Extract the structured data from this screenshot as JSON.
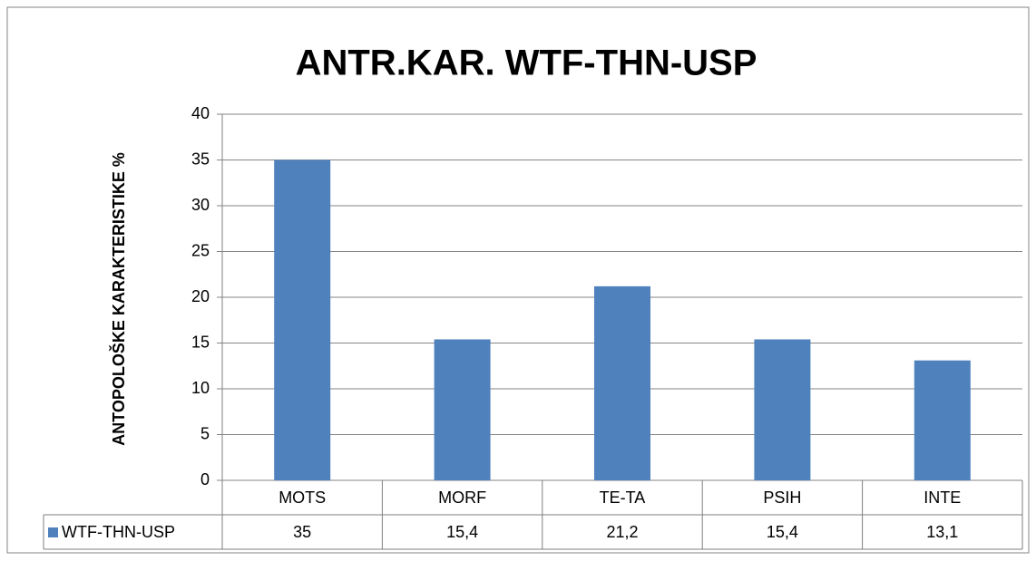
{
  "chart_data": {
    "type": "bar",
    "title": "ANTR.KAR. WTF-THN-USP",
    "y_label": "ANTOPOLOŠKE  KARAKTERISTIKE %",
    "categories": [
      "MOTS",
      "MORF",
      "TE-TA",
      "PSIH",
      "INTE"
    ],
    "series": [
      {
        "name": "WTF-THN-USP",
        "color": "#4f81bd",
        "values": [
          35,
          15.4,
          21.2,
          15.4,
          13.1
        ],
        "value_labels": [
          "35",
          "15,4",
          "21,2",
          "15,4",
          "13,1"
        ]
      }
    ],
    "ylim": [
      0,
      40
    ],
    "yticks": [
      0,
      5,
      10,
      15,
      20,
      25,
      30,
      35,
      40
    ],
    "grid": true
  }
}
